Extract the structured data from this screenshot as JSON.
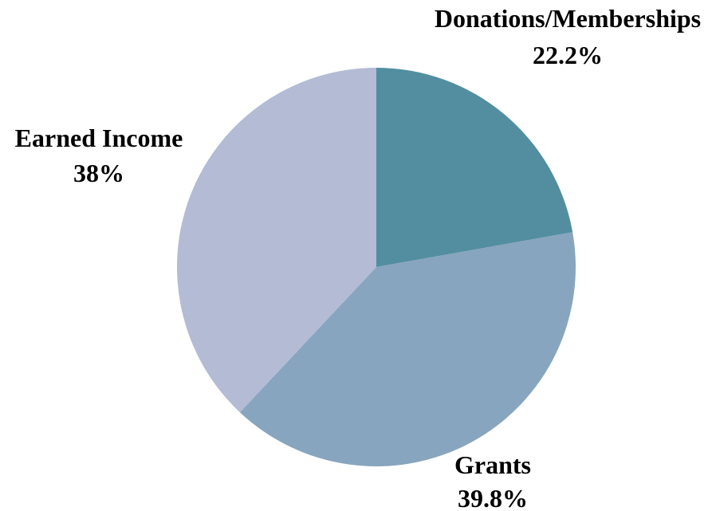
{
  "chart_data": {
    "type": "pie",
    "start_angle_deg": 0,
    "direction": "clockwise",
    "slices": [
      {
        "label": "Donations/Memberships",
        "value": 22.2,
        "value_label": "22.2%",
        "color": "#528ea0"
      },
      {
        "label": "Grants",
        "value": 39.8,
        "value_label": "39.8%",
        "color": "#87a5be"
      },
      {
        "label": "Earned Income",
        "value": 38,
        "value_label": "38%",
        "color": "#b3bbd5"
      }
    ]
  }
}
